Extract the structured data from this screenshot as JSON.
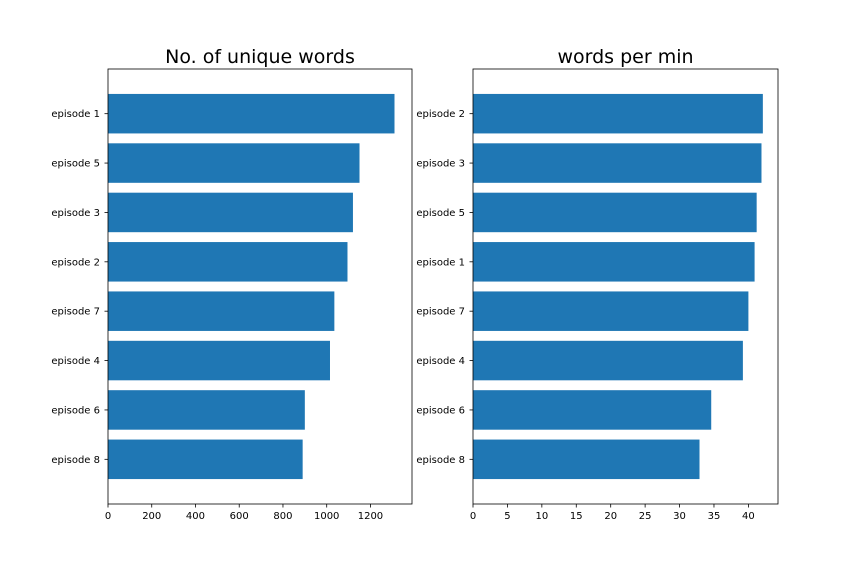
{
  "bar_color": "#1f77b4",
  "chart_data": [
    {
      "type": "bar",
      "orientation": "horizontal",
      "title": "No. of unique words",
      "categories": [
        "episode 1",
        "episode 5",
        "episode 3",
        "episode 2",
        "episode 7",
        "episode 4",
        "episode 6",
        "episode 8"
      ],
      "values": [
        1310,
        1150,
        1120,
        1095,
        1035,
        1015,
        900,
        890
      ],
      "xlim": [
        0,
        1390
      ],
      "xticks": [
        0,
        200,
        400,
        600,
        800,
        1000,
        1200
      ],
      "xlabel": "",
      "ylabel": "",
      "grid": false
    },
    {
      "type": "bar",
      "orientation": "horizontal",
      "title": "words per min",
      "categories": [
        "episode 2",
        "episode 3",
        "episode 5",
        "episode 1",
        "episode 7",
        "episode 4",
        "episode 6",
        "episode 8"
      ],
      "values": [
        42.1,
        41.9,
        41.2,
        40.9,
        40.0,
        39.2,
        34.6,
        32.9
      ],
      "xlim": [
        0,
        44.3
      ],
      "xticks": [
        0,
        5,
        10,
        15,
        20,
        25,
        30,
        35,
        40
      ],
      "xlabel": "",
      "ylabel": "",
      "grid": false
    }
  ]
}
